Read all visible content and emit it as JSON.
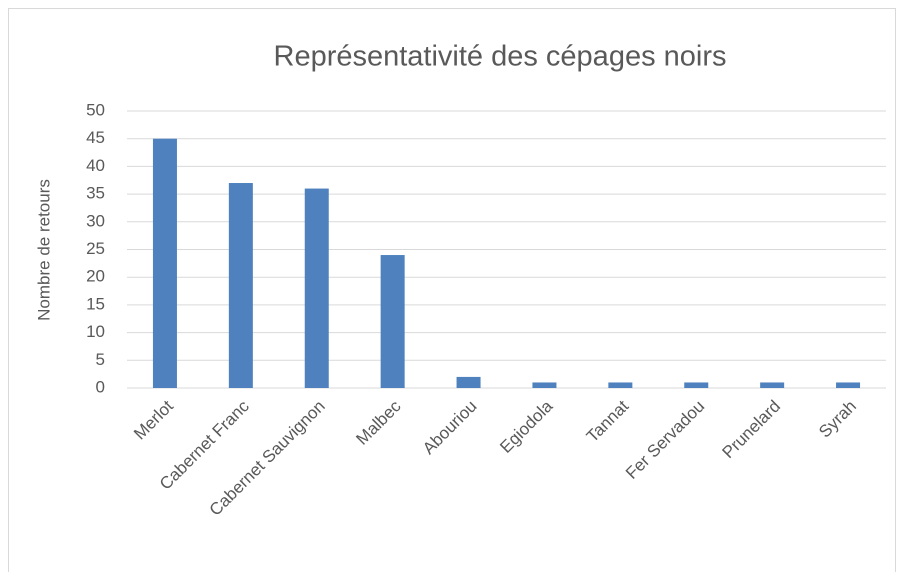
{
  "chart_data": {
    "type": "bar",
    "title": "Représentativité des cépages noirs",
    "y_label": "Nombre de retours",
    "categories": [
      "Merlot",
      "Cabernet Franc",
      "Cabernet Sauvignon",
      "Malbec",
      "Abouriou",
      "Egiodola",
      "Tannat",
      "Fer Servadou",
      "Prunelard",
      "Syrah"
    ],
    "values": [
      45,
      37,
      36,
      24,
      2,
      1,
      1,
      1,
      1,
      1
    ],
    "color": "#4e81bd",
    "ylim": [
      0,
      50
    ],
    "yticks": [
      0,
      5,
      10,
      15,
      20,
      25,
      30,
      35,
      40,
      45,
      50
    ],
    "grid": true
  }
}
